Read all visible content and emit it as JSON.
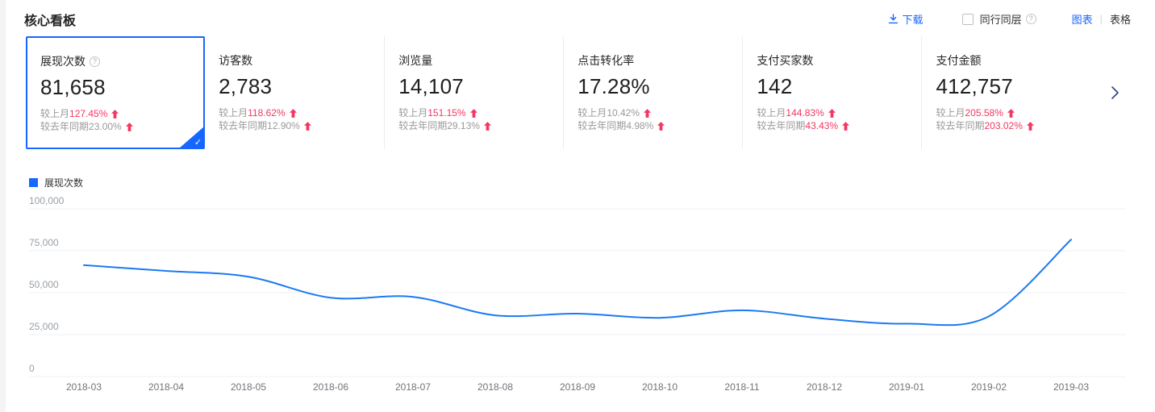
{
  "header": {
    "title": "核心看板",
    "download_label": "下载",
    "peer_checkbox_label": "同行同层",
    "view_chart_label": "图表",
    "view_divider": "|",
    "view_table_label": "表格"
  },
  "strings": {
    "mom_label": "较上月",
    "yoy_label": "较去年同期"
  },
  "cards": [
    {
      "label": "展现次数",
      "has_help": true,
      "value": "81,658",
      "mom_value": "127.45%",
      "mom_color": "red",
      "yoy_value": "23.00%",
      "yoy_color": "gray",
      "selected": true
    },
    {
      "label": "访客数",
      "has_help": false,
      "value": "2,783",
      "mom_value": "118.62%",
      "mom_color": "red",
      "yoy_value": "12.90%",
      "yoy_color": "gray",
      "selected": false
    },
    {
      "label": "浏览量",
      "has_help": false,
      "value": "14,107",
      "mom_value": "151.15%",
      "mom_color": "red",
      "yoy_value": "29.13%",
      "yoy_color": "gray",
      "selected": false
    },
    {
      "label": "点击转化率",
      "has_help": false,
      "value": "17.28%",
      "mom_value": "10.42%",
      "mom_color": "gray",
      "yoy_value": "4.98%",
      "yoy_color": "gray",
      "selected": false
    },
    {
      "label": "支付买家数",
      "has_help": false,
      "value": "142",
      "mom_value": "144.83%",
      "mom_color": "red",
      "yoy_value": "43.43%",
      "yoy_color": "red",
      "selected": false
    },
    {
      "label": "支付金额",
      "has_help": false,
      "value": "412,757",
      "mom_value": "205.58%",
      "mom_color": "red",
      "yoy_value": "203.02%",
      "yoy_color": "red",
      "selected": false
    }
  ],
  "colors": {
    "accent_blue": "#1966ff",
    "selected_border": "#1567ff",
    "rise_red": "#f5365f",
    "gray_text": "#999999",
    "line_blue": "#1b7af2"
  },
  "chart_data": {
    "type": "line",
    "title": "",
    "legend": [
      "展现次数"
    ],
    "legend_position": "top-left",
    "grid": true,
    "categories": [
      "2018-03",
      "2018-04",
      "2018-05",
      "2018-06",
      "2018-07",
      "2018-08",
      "2018-09",
      "2018-10",
      "2018-11",
      "2018-12",
      "2019-01",
      "2019-02",
      "2019-03"
    ],
    "series": [
      {
        "name": "展现次数",
        "values": [
          66400,
          63000,
          59500,
          47000,
          47500,
          36500,
          37500,
          35000,
          39500,
          34500,
          31500,
          35900,
          81658
        ]
      }
    ],
    "ylim": [
      0,
      100000
    ],
    "yticks": [
      0,
      25000,
      50000,
      75000,
      100000
    ],
    "xlabel": "",
    "ylabel": "",
    "line_color": "#1b7af2"
  }
}
